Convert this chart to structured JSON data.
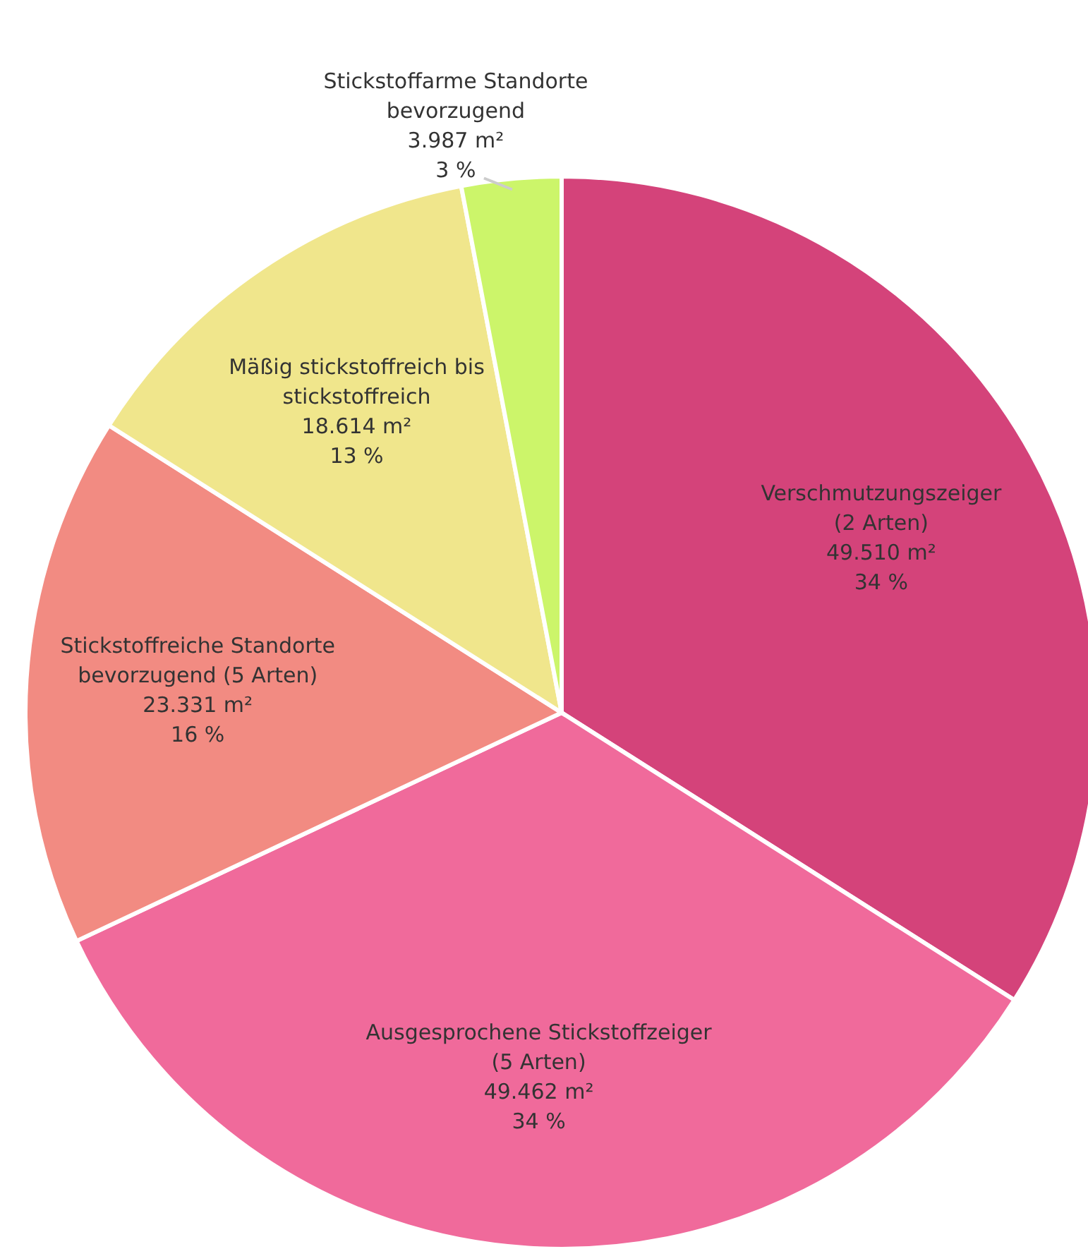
{
  "chart_data": {
    "type": "pie",
    "categories": [
      "Verschmutzungszeiger\n(2 Arten)",
      "Ausgesprochene Stickstoffzeiger\n(5 Arten)",
      "Stickstoffreiche Standorte\nbevorzugend (5 Arten)",
      "Mäßig stickstoffreich bis\nstickstoffreich",
      "Stickstoffarme Standorte\nbevorzugend"
    ],
    "values": [
      34,
      34,
      16,
      13,
      3
    ],
    "value_labels": [
      "34 %",
      "34 %",
      "16 %",
      "13 %",
      "3 %"
    ],
    "annotations": [
      "49.510 m²",
      "49.462 m²",
      "23.331 m²",
      "18.614 m²",
      "3.987 m²"
    ],
    "colors": [
      "#d4437a",
      "#f06a9b",
      "#f28b82",
      "#f0e68c",
      "#ccf56a"
    ]
  }
}
